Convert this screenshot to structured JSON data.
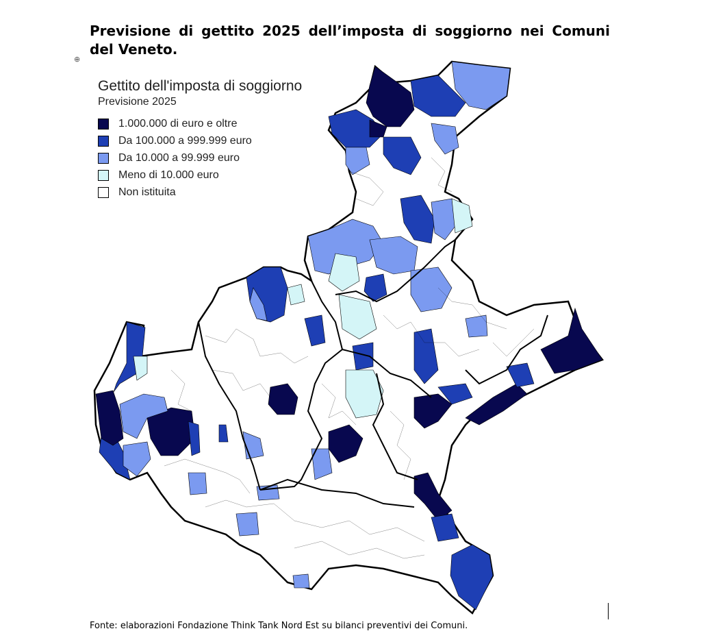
{
  "title": "Previsione di gettito 2025 dell’imposta di soggiorno nei Comuni del Veneto.",
  "legend": {
    "title": "Gettito dell'imposta di soggiorno",
    "subtitle": "Previsione 2025",
    "items": [
      {
        "label": "1.000.000 di euro e oltre",
        "color": "#08084f"
      },
      {
        "label": "Da 100.000 a 999.999 euro",
        "color": "#1e3fb4"
      },
      {
        "label": "Da 10.000 a 99.999 euro",
        "color": "#7b9af0"
      },
      {
        "label": "Meno di 10.000 euro",
        "color": "#d4f5f7"
      },
      {
        "label": "Non istituita",
        "color": "#ffffff"
      }
    ]
  },
  "source": "Fonte: elaborazioni Fondazione Think Tank Nord Est su bilanci preventivi dei Comuni.",
  "icons": {
    "small_mark": "globe-mark-icon"
  }
}
